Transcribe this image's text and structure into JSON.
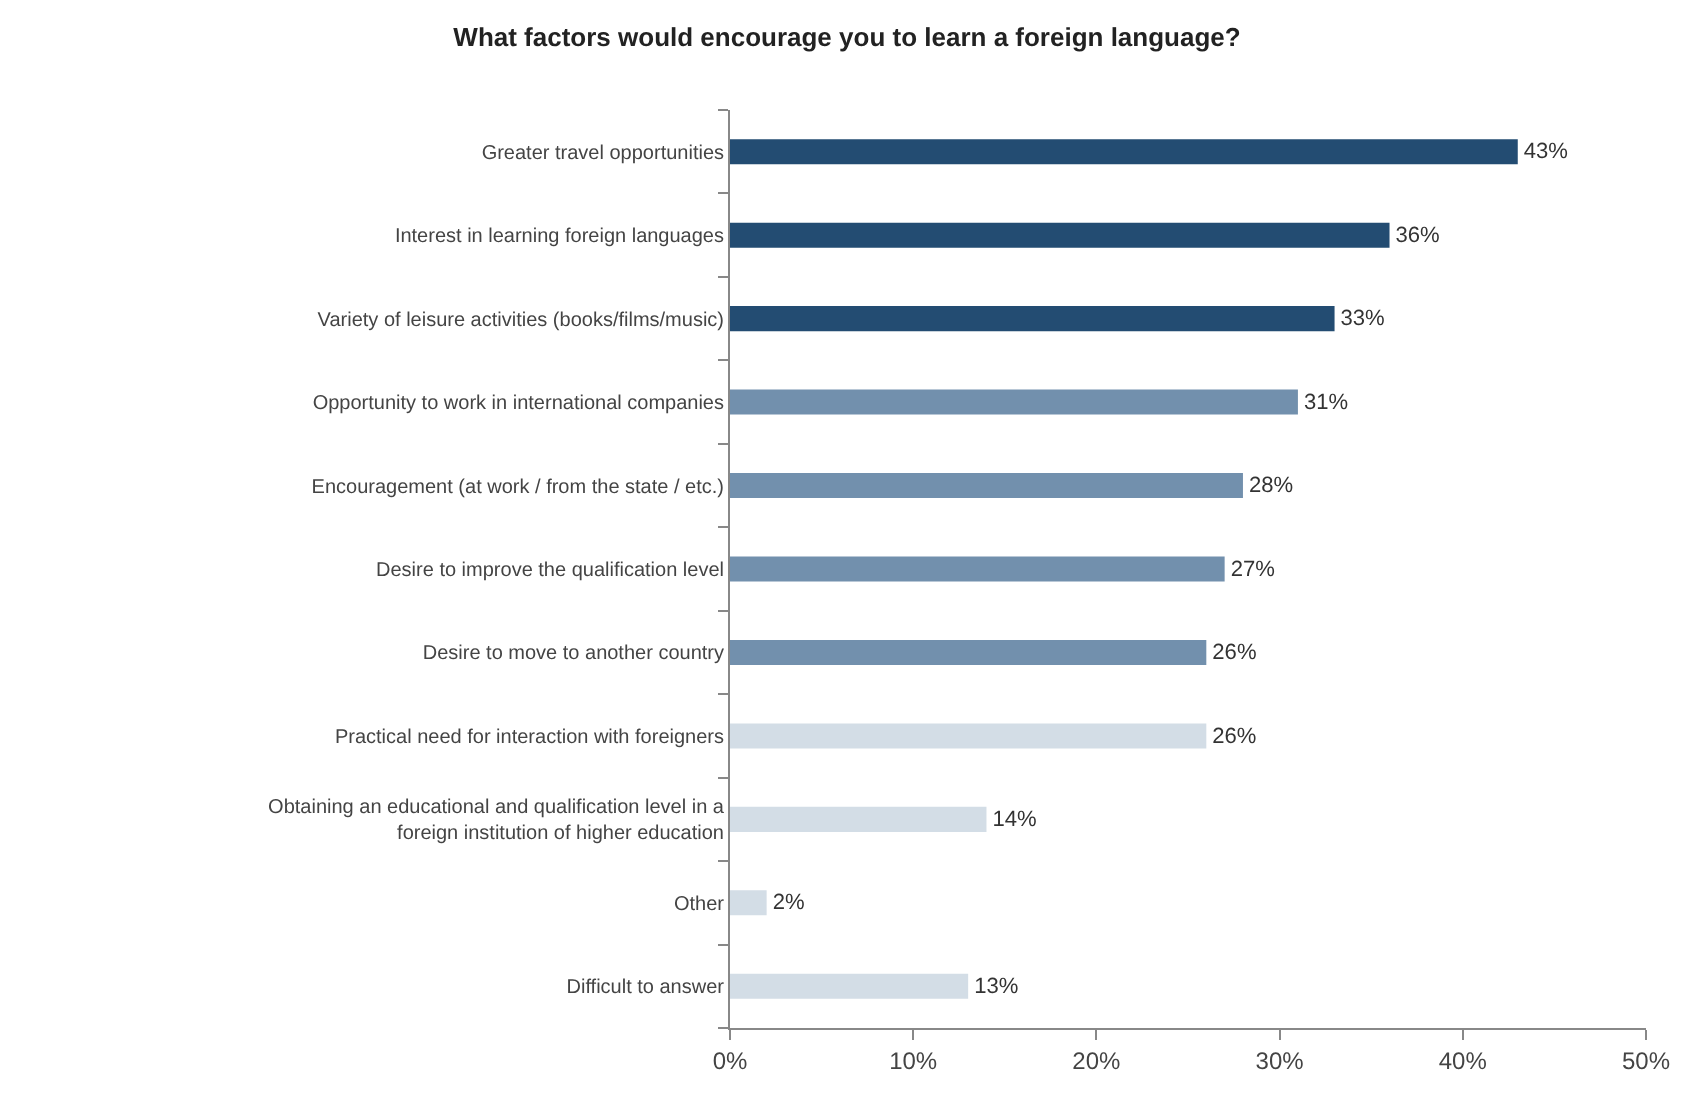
{
  "chart_data": {
    "type": "bar",
    "orientation": "horizontal",
    "title": "What factors would encourage you to learn a foreign language?",
    "categories": [
      "Greater travel opportunities",
      "Interest in learning foreign languages",
      "Variety of leisure activities (books/films/music)",
      "Opportunity to work in international companies",
      "Encouragement (at work / from the state / etc.)",
      "Desire to improve the qualification level",
      "Desire to move to another country",
      "Practical need for interaction with foreigners",
      "Obtaining an educational and qualification level in a foreign institution of higher education",
      "Other",
      "Difficult to answer"
    ],
    "values": [
      43,
      36,
      33,
      31,
      28,
      27,
      26,
      26,
      14,
      2,
      13
    ],
    "colors": [
      "#234c72",
      "#234c72",
      "#234c72",
      "#7290ad",
      "#7290ad",
      "#7290ad",
      "#7290ad",
      "#d3dde6",
      "#d3dde6",
      "#d3dde6",
      "#d3dde6"
    ],
    "value_labels": [
      "43%",
      "36%",
      "33%",
      "31%",
      "28%",
      "27%",
      "26%",
      "26%",
      "14%",
      "2%",
      "13%"
    ],
    "xlim": [
      0,
      50
    ],
    "xticks": [
      {
        "value": 0,
        "label": "0%"
      },
      {
        "value": 10,
        "label": "10%"
      },
      {
        "value": 20,
        "label": "20%"
      },
      {
        "value": 30,
        "label": "30%"
      },
      {
        "value": 40,
        "label": "40%"
      },
      {
        "value": 50,
        "label": "50%"
      }
    ],
    "legend": false
  }
}
